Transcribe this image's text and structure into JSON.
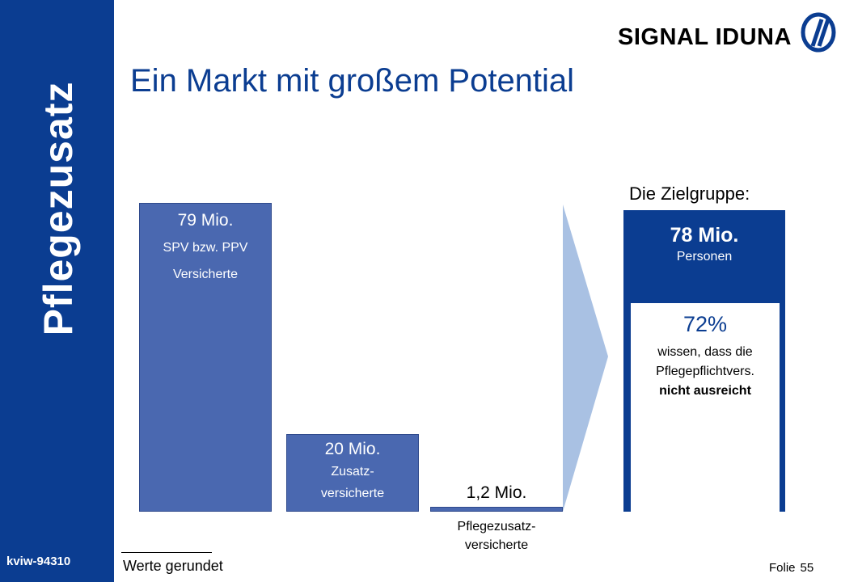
{
  "sidebar": {
    "title": "Pflegezusatz",
    "doc_id": "kviw-94310"
  },
  "logo": {
    "text": "SIGNAL IDUNA"
  },
  "slide": {
    "title": "Ein Markt mit großem Potential",
    "zielgruppe_label": "Die Zielgruppe:"
  },
  "bars": [
    {
      "value": "79 Mio.",
      "sub1": "SPV bzw. PPV",
      "sub2": "Versicherte"
    },
    {
      "value": "20 Mio.",
      "sub1": "Zusatz-",
      "sub2": "versicherte"
    },
    {
      "value": "1,2 Mio.",
      "sub1": "Pflegezusatz-",
      "sub2": "versicherte"
    }
  ],
  "target": {
    "value": "78 Mio.",
    "sub": "Personen",
    "inner_pct": "72%",
    "line1": "wissen, dass die",
    "line2": "Pflegepflichtvers.",
    "line3": "nicht ausreicht"
  },
  "footer": {
    "note": "Werte gerundet",
    "folie_label": "Folie",
    "folie_number": "55"
  },
  "colors": {
    "brand_blue": "#0b3d91",
    "bar_blue": "#4a68b0",
    "arrow_blue": "#a9c1e3"
  }
}
